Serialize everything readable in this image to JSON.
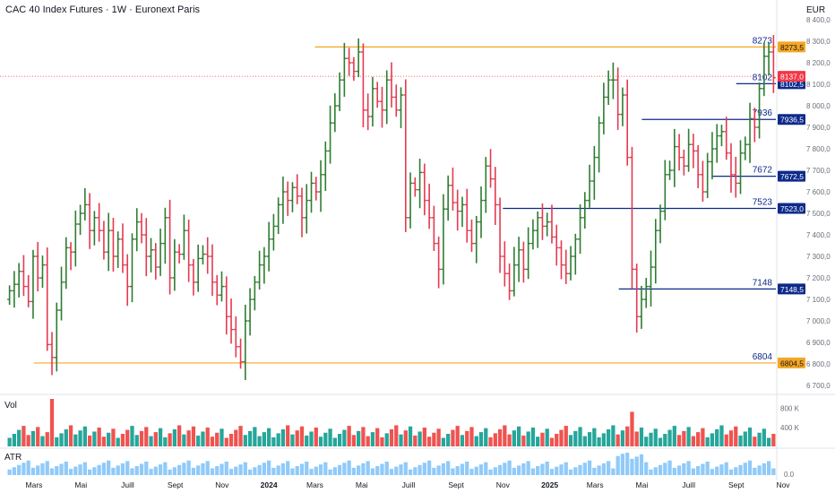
{
  "header": {
    "title": "CAC 40 Index Futures · 1W · Euronext Paris",
    "currency": "EUR"
  },
  "panes": {
    "volume_label": "Vol",
    "atr_label": "ATR"
  },
  "colors": {
    "up": "#2e7d32",
    "down": "#e53950",
    "level_orange": "#f5a623",
    "level_blue": "#0d2a8a",
    "vol_up": "#26a69a",
    "vol_down": "#ef5350",
    "atr": "#90caf9",
    "last_price": "#f23645"
  },
  "chart_data": [
    {
      "type": "bar",
      "subtype": "ohlc",
      "title": "CAC 40 Index Futures · 1W · Euronext Paris",
      "y_unit": "EUR",
      "ylim": [
        6650,
        8420
      ],
      "x_tick_labels": [
        {
          "label": "Mars",
          "date": "2023-03"
        },
        {
          "label": "Mai",
          "date": "2023-05"
        },
        {
          "label": "Juill",
          "date": "2023-07"
        },
        {
          "label": "Sept",
          "date": "2023-09"
        },
        {
          "label": "Nov",
          "date": "2023-11"
        },
        {
          "label": "2024",
          "date": "2024-01"
        },
        {
          "label": "Mars",
          "date": "2024-03"
        },
        {
          "label": "Mai",
          "date": "2024-05"
        },
        {
          "label": "Juill",
          "date": "2024-07"
        },
        {
          "label": "Sept",
          "date": "2024-09"
        },
        {
          "label": "Nov",
          "date": "2024-11"
        },
        {
          "label": "2025",
          "date": "2025-01"
        },
        {
          "label": "Mars",
          "date": "2025-03"
        },
        {
          "label": "Mai",
          "date": "2025-05"
        },
        {
          "label": "Juill",
          "date": "2025-07"
        },
        {
          "label": "Sept",
          "date": "2025-09"
        },
        {
          "label": "Nov",
          "date": "2025-11"
        }
      ],
      "y_ticks": [
        "8 400,0",
        "8 300,0",
        "8 200,0",
        "8 100,0",
        "8 000,0",
        "7 900,0",
        "7 800,0",
        "7 700,0",
        "7 600,0",
        "7 500,0",
        "7 400,0",
        "7 300,0",
        "7 200,0",
        "7 100,0",
        "7 000,0",
        "6 900,0",
        "6 800,0",
        "6 700,0"
      ],
      "close_series": [
        7140,
        7170,
        7230,
        7160,
        7090,
        7300,
        7200,
        7260,
        6890,
        6830,
        7050,
        7180,
        7340,
        7320,
        7450,
        7500,
        7540,
        7420,
        7480,
        7420,
        7320,
        7420,
        7300,
        7380,
        7260,
        7160,
        7380,
        7460,
        7400,
        7300,
        7330,
        7250,
        7360,
        7480,
        7200,
        7320,
        7310,
        7420,
        7260,
        7180,
        7290,
        7310,
        7300,
        7180,
        7120,
        7160,
        7020,
        6960,
        6880,
        6810,
        7000,
        7100,
        7180,
        7260,
        7300,
        7380,
        7440,
        7540,
        7600,
        7560,
        7620,
        7580,
        7480,
        7560,
        7640,
        7600,
        7680,
        7790,
        7920,
        8000,
        8120,
        8220,
        8200,
        8160,
        8250,
        7980,
        7950,
        8080,
        8020,
        7980,
        8120,
        8040,
        7980,
        8050,
        7480,
        7640,
        7610,
        7690,
        7560,
        7480,
        7360,
        7240,
        7520,
        7630,
        7550,
        7510,
        7540,
        7420,
        7360,
        7460,
        7560,
        7720,
        7660,
        7540,
        7300,
        7220,
        7140,
        7260,
        7330,
        7240,
        7360,
        7420,
        7480,
        7440,
        7460,
        7390,
        7340,
        7260,
        7220,
        7300,
        7380,
        7480,
        7560,
        7650,
        7760,
        7920,
        8040,
        8120,
        8120,
        7960,
        8050,
        7760,
        7240,
        7020,
        7100,
        7160,
        7250,
        7420,
        7510,
        7680,
        7700,
        7810,
        7760,
        7720,
        7820,
        7790,
        7680,
        7600,
        7740,
        7800,
        7860,
        7880,
        7780,
        7680,
        7640,
        7780,
        7820,
        7940,
        7900,
        8080,
        8230,
        8250,
        8130
      ],
      "y_marker_labels": [
        "8273,5",
        "8137,0",
        "8102,5",
        "7936,5",
        "7672,5",
        "7523,0",
        "7148,5",
        "6804,5"
      ],
      "horizontal_levels": [
        {
          "label": "8273",
          "axis_label": "8273,5",
          "value": 8273.5,
          "color": "orange",
          "from": "2024-03",
          "to": "2025-10"
        },
        {
          "label": "8102",
          "axis_label": "8102,5",
          "value": 8102.5,
          "color": "blue",
          "from": "2025-09",
          "to": "2025-10"
        },
        {
          "label": "7936",
          "axis_label": "7936,5",
          "value": 7936.5,
          "color": "blue",
          "from": "2025-05",
          "to": "2025-10"
        },
        {
          "label": "7672",
          "axis_label": "7672,5",
          "value": 7672.5,
          "color": "blue",
          "from": "2025-08",
          "to": "2025-10"
        },
        {
          "label": "7523",
          "axis_label": "7523,0",
          "value": 7523.0,
          "color": "blue",
          "from": "2024-11",
          "to": "2025-10"
        },
        {
          "label": "7148",
          "axis_label": "7148,5",
          "value": 7148.5,
          "color": "blue",
          "from": "2025-04",
          "to": "2025-10"
        },
        {
          "label": "6804",
          "axis_label": "6804,5",
          "value": 6804.5,
          "color": "orange",
          "from": "2023-03",
          "to": "2025-10"
        }
      ],
      "last_price": {
        "axis_label": "8137,0",
        "value": 8137.0
      }
    },
    {
      "type": "bar",
      "title": "Vol",
      "y_ticks": [
        "800 K",
        "400 K"
      ],
      "ylim": [
        0,
        1000000
      ]
    },
    {
      "type": "bar",
      "title": "ATR",
      "y_ticks": [
        "0.0"
      ]
    }
  ]
}
